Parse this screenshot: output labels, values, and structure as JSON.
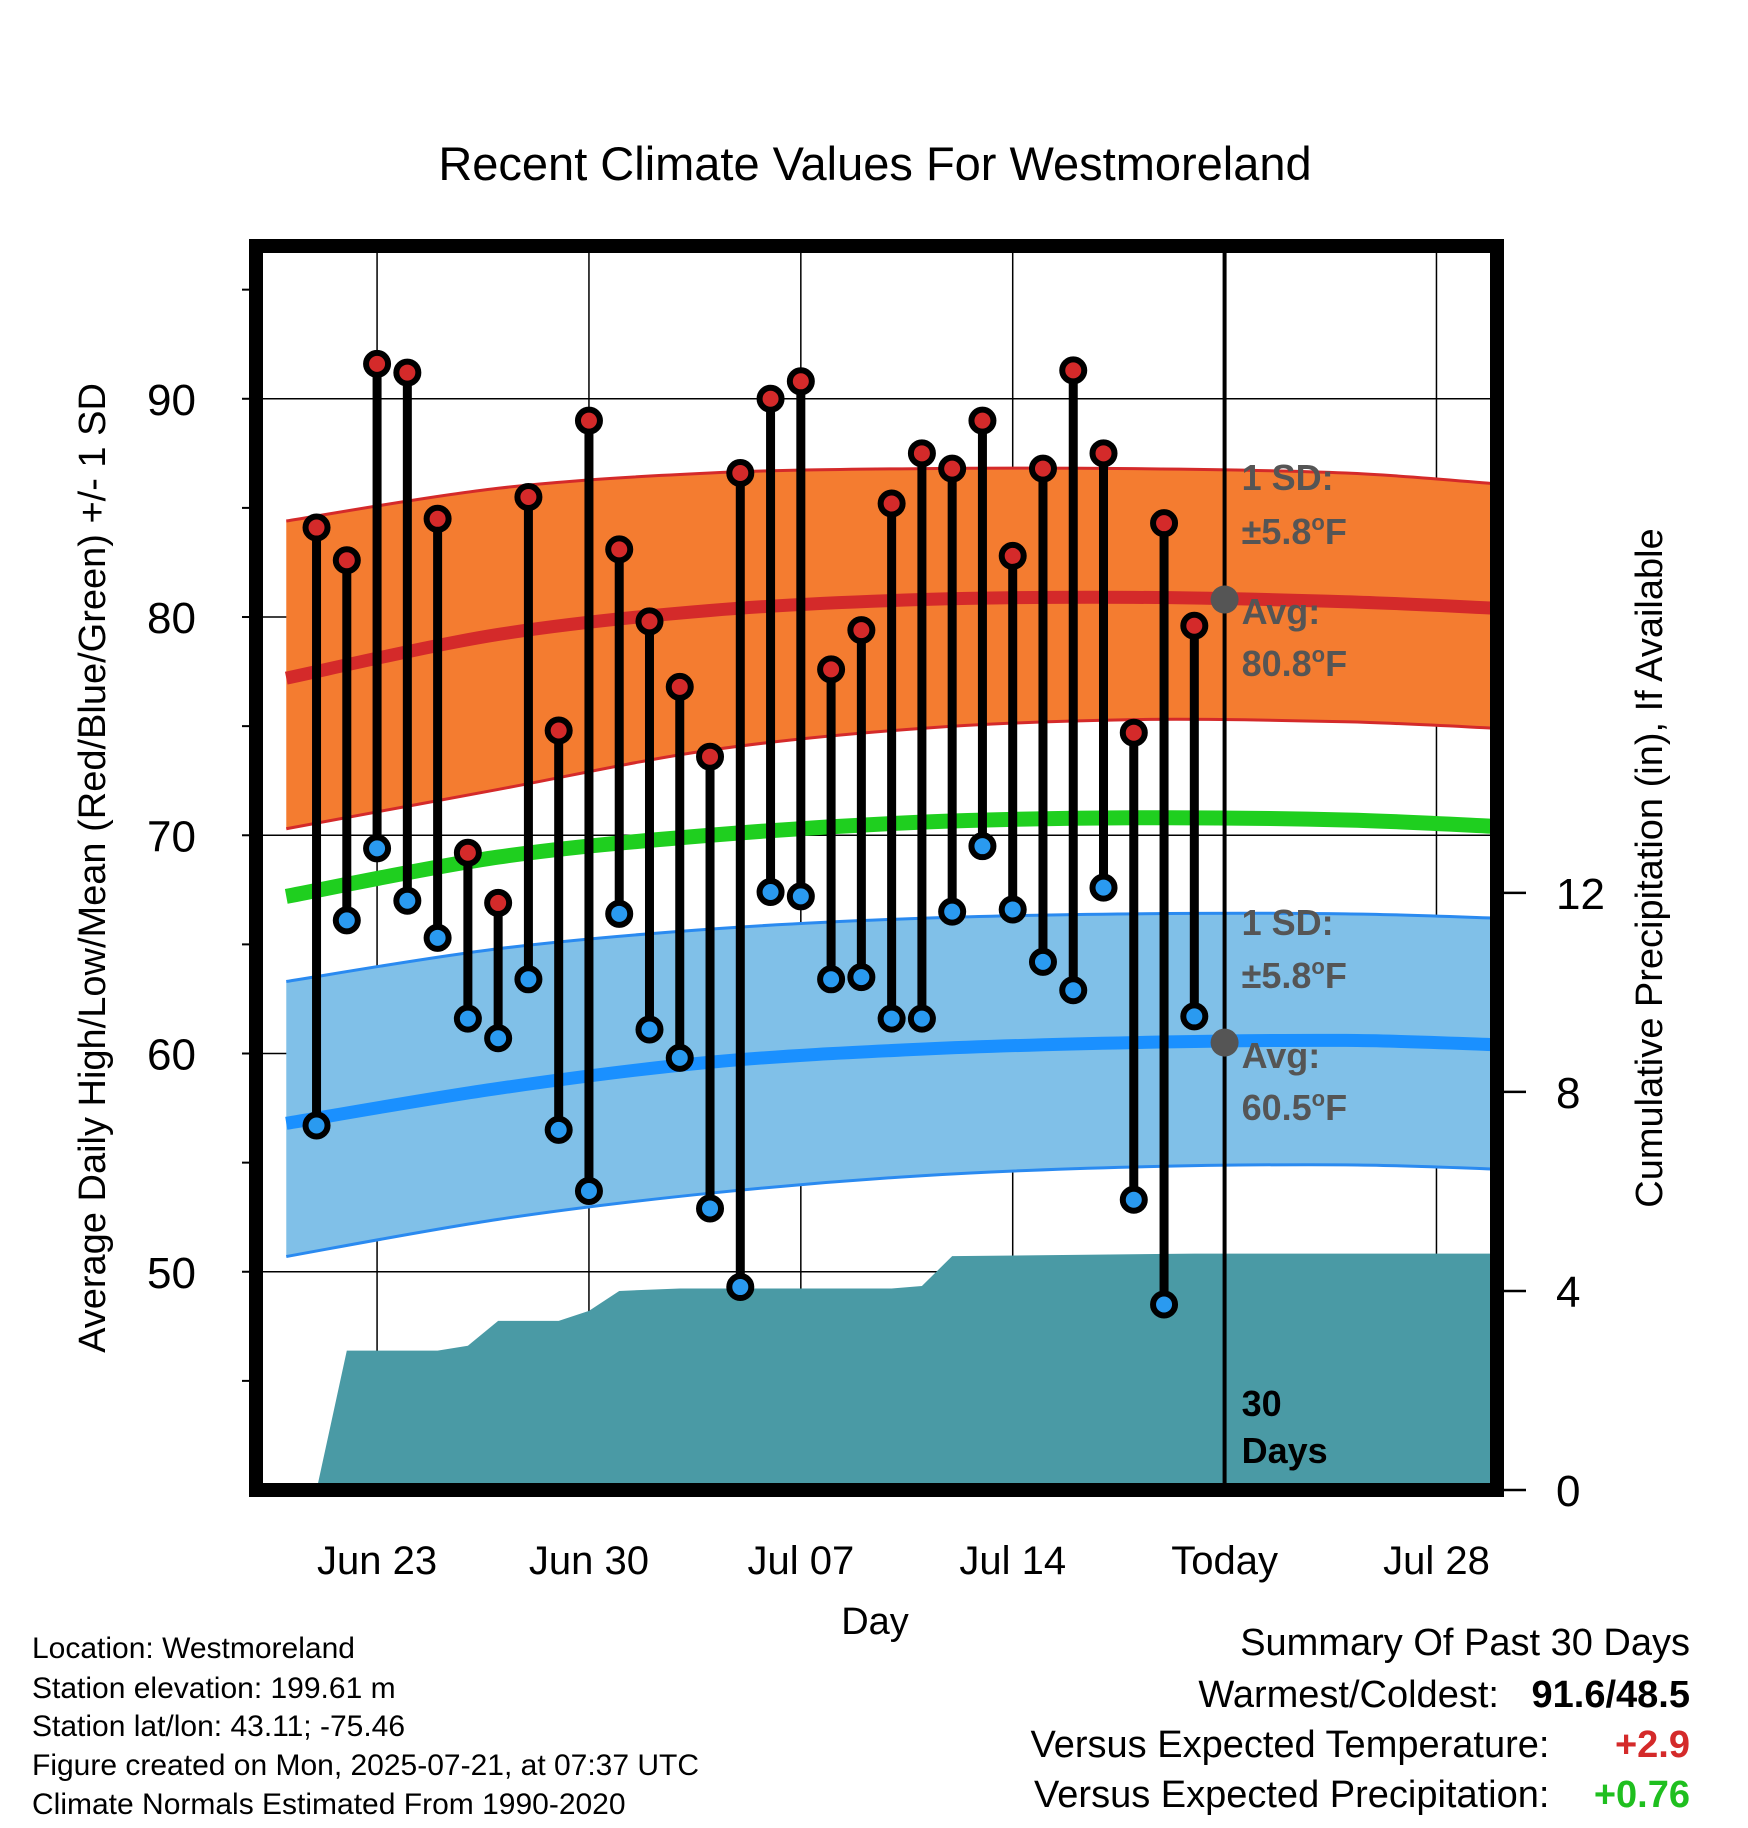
{
  "chart_data": {
    "type": "line",
    "title": "Recent Climate Values For Westmoreland",
    "xlabel": "Day",
    "ylabel": "Average Daily High/Low/Mean (Red/Blue/Green) +/- 1 SD",
    "y2label": "Cumulative Precipitation (in), If Available",
    "ylim": [
      40,
      97
    ],
    "y2lim": [
      0,
      25
    ],
    "y_ticks": [
      50,
      60,
      70,
      80,
      90
    ],
    "y2_ticks": [
      0,
      4,
      8,
      12
    ],
    "x_tick_labels": [
      "Jun 23",
      "Jun 30",
      "Jul 07",
      "Jul 14",
      "Today",
      "Jul 28"
    ],
    "x_tick_dates": [
      "2025-06-23",
      "2025-06-30",
      "2025-07-07",
      "2025-07-14",
      "2025-07-21",
      "2025-07-28"
    ],
    "x_range": [
      "2025-06-19",
      "2025-07-30"
    ],
    "grid": true,
    "dates": [
      "2025-06-21",
      "2025-06-22",
      "2025-06-23",
      "2025-06-24",
      "2025-06-25",
      "2025-06-26",
      "2025-06-27",
      "2025-06-28",
      "2025-06-29",
      "2025-06-30",
      "2025-07-01",
      "2025-07-02",
      "2025-07-03",
      "2025-07-04",
      "2025-07-05",
      "2025-07-06",
      "2025-07-07",
      "2025-07-08",
      "2025-07-09",
      "2025-07-10",
      "2025-07-11",
      "2025-07-12",
      "2025-07-13",
      "2025-07-14",
      "2025-07-15",
      "2025-07-16",
      "2025-07-17",
      "2025-07-18",
      "2025-07-19",
      "2025-07-20"
    ],
    "series": [
      {
        "name": "High",
        "color": "#d42a2a",
        "values": [
          84.1,
          82.6,
          91.6,
          91.2,
          84.5,
          69.2,
          66.9,
          85.5,
          74.8,
          89.0,
          83.1,
          79.8,
          76.8,
          73.6,
          86.6,
          90.0,
          90.8,
          77.6,
          79.4,
          85.2,
          87.5,
          86.8,
          89.0,
          82.8,
          86.8,
          91.3,
          87.5,
          74.7,
          84.3,
          79.6
        ]
      },
      {
        "name": "Low",
        "color": "#2a9af0",
        "values": [
          56.7,
          66.1,
          69.4,
          67.0,
          65.3,
          61.6,
          60.7,
          63.4,
          56.5,
          53.7,
          66.4,
          61.1,
          59.8,
          52.9,
          49.3,
          67.4,
          67.2,
          63.4,
          63.5,
          61.6,
          61.6,
          66.5,
          69.5,
          66.6,
          64.2,
          62.9,
          67.6,
          53.3,
          48.5,
          61.7
        ]
      }
    ],
    "normals_dates": [
      "2025-06-20",
      "2025-06-27",
      "2025-07-04",
      "2025-07-11",
      "2025-07-18",
      "2025-07-25",
      "2025-07-30"
    ],
    "normal_high": [
      77.2,
      79.2,
      80.3,
      80.8,
      80.9,
      80.7,
      80.4
    ],
    "normal_high_sd_upper": [
      84.4,
      85.9,
      86.6,
      86.8,
      86.8,
      86.6,
      86.1
    ],
    "normal_high_sd_lower": [
      70.3,
      72.1,
      73.9,
      74.9,
      75.3,
      75.2,
      74.9
    ],
    "normal_mean": [
      67.2,
      69.0,
      70.0,
      70.6,
      70.8,
      70.7,
      70.4
    ],
    "normal_low": [
      56.8,
      58.4,
      59.6,
      60.2,
      60.5,
      60.6,
      60.4
    ],
    "normal_low_sd_upper": [
      63.3,
      64.8,
      65.7,
      66.2,
      66.4,
      66.4,
      66.2
    ],
    "normal_low_sd_lower": [
      50.7,
      52.4,
      53.6,
      54.4,
      54.8,
      54.9,
      54.7
    ],
    "precip_dates": [
      "2025-06-21",
      "2025-06-22",
      "2025-06-25",
      "2025-06-26",
      "2025-06-27",
      "2025-06-29",
      "2025-06-30",
      "2025-07-01",
      "2025-07-03",
      "2025-07-10",
      "2025-07-11",
      "2025-07-12",
      "2025-07-20",
      "2025-07-30"
    ],
    "cumulative_precip": [
      0.0,
      2.8,
      2.8,
      2.9,
      3.4,
      3.4,
      3.6,
      4.0,
      4.05,
      4.05,
      4.1,
      4.7,
      4.75,
      4.75
    ],
    "annotations": {
      "high_sd_label": "1 SD:",
      "high_sd_value": "±5.8",
      "high_avg_label": "Avg:",
      "high_avg_value": "80.8",
      "low_sd_label": "1 SD:",
      "low_sd_value": "±5.8",
      "low_avg_label": "Avg:",
      "low_avg_value": "60.5",
      "unit_sup": "o",
      "unit_letter": "F",
      "days_line1": "30",
      "days_line2": "Days"
    },
    "colors": {
      "high_band": "#f47c30",
      "high_edge": "#d42a2a",
      "mean": "#1fcf1f",
      "low_band": "#80c0e8",
      "low_edge": "#2a8af0",
      "low_line": "#1a90ff",
      "precip": "#4a9aa5",
      "annotation": "#555555"
    }
  },
  "info": {
    "location": "Location: Westmoreland",
    "elevation": "Station elevation: 199.61 m",
    "latlon": "Station lat/lon: 43.11; -75.46",
    "created": "Figure created on Mon, 2025-07-21, at 07:37 UTC",
    "normals": "Climate Normals Estimated From 1990-2020"
  },
  "summary": {
    "heading": "Summary Of Past 30 Days",
    "warmest_label": "Warmest/Coldest:",
    "warmest_value": "91.6/48.5",
    "temp_label": "Versus Expected Temperature:",
    "temp_value": "+2.9",
    "temp_color": "#d42a2a",
    "precip_label": "Versus Expected Precipitation:",
    "precip_value": "+0.76",
    "precip_color": "#1fbf1f"
  }
}
